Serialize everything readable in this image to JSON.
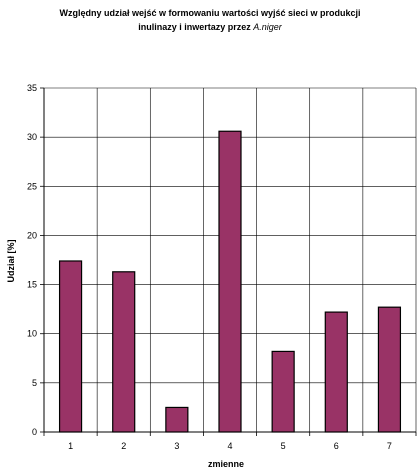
{
  "chart_data": {
    "type": "bar",
    "title_line1": "Względny udział wejść w formowaniu wartości wyjść sieci w produkcji",
    "title_line2_main": "inulinazy i inwertazy przez ",
    "title_line2_italic": "A.niger",
    "xlabel": "zmienne",
    "ylabel": "Udział [%]",
    "categories": [
      "1",
      "2",
      "3",
      "4",
      "5",
      "6",
      "7"
    ],
    "values": [
      17.4,
      16.3,
      2.5,
      30.6,
      8.2,
      12.2,
      12.7
    ],
    "ylim": [
      0,
      35
    ],
    "yticks": [
      "0",
      "5",
      "10",
      "15",
      "20",
      "25",
      "30",
      "35"
    ],
    "grid": true,
    "bar_color": "#993366",
    "bar_edge_color": "#000000"
  }
}
